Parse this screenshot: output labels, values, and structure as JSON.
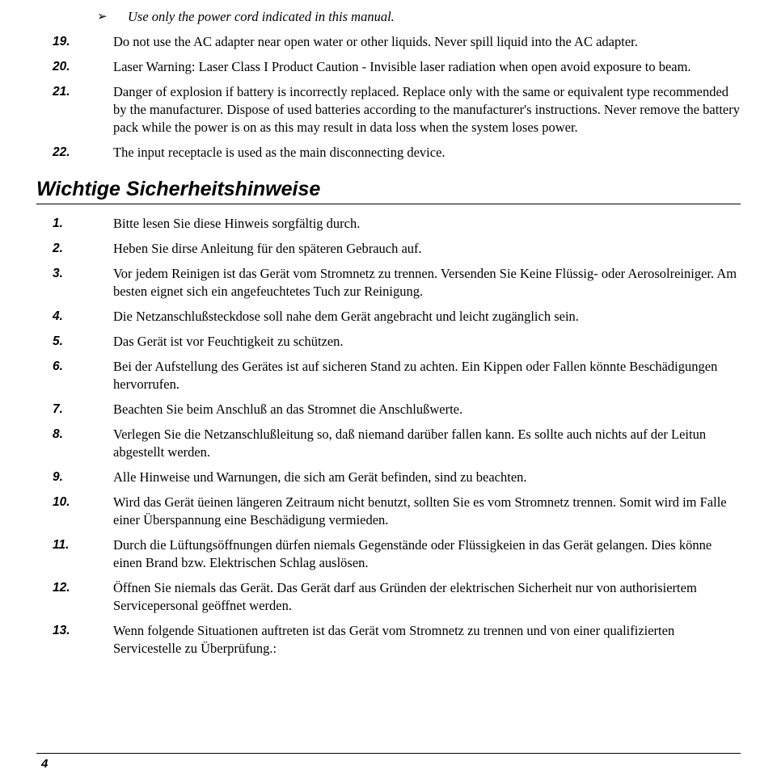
{
  "bullet": {
    "glyph": "➢",
    "text": "Use only the power cord indicated in this manual."
  },
  "english_items": [
    {
      "num": "19.",
      "text": "Do not use the AC adapter near open water or other liquids. Never spill liquid into the AC adapter."
    },
    {
      "num": "20.",
      "text": "Laser Warning: Laser Class I Product Caution - Invisible laser radiation when open avoid exposure to beam."
    },
    {
      "num": "21.",
      "text": "Danger of explosion if battery is incorrectly replaced.  Replace only with the same or equivalent type recommended by the manufacturer.  Dispose of used batteries according to the manufacturer's instructions.  Never remove the battery pack while the power is on as this may result in data loss when the system loses power."
    },
    {
      "num": "22.",
      "text": "The input receptacle is used as the main disconnecting device."
    }
  ],
  "heading": "Wichtige Sicherheitshinweise",
  "german_items": [
    {
      "num": "1.",
      "text": "Bitte lesen Sie diese Hinweis sorgfältig durch."
    },
    {
      "num": "2.",
      "text": "Heben Sie dirse Anleitung für den späteren Gebrauch auf."
    },
    {
      "num": "3.",
      "text": "Vor jedem Reinigen ist das Gerät vom Stromnetz zu trennen.  Versenden Sie Keine Flüssig- oder Aerosolreiniger.  Am besten eignet sich ein angefeuchtetes Tuch zur Reinigung."
    },
    {
      "num": "4.",
      "text": "Die Netzanschlußsteckdose soll nahe dem Gerät angebracht und leicht zugänglich sein."
    },
    {
      "num": "5.",
      "text": "Das Gerät ist vor Feuchtigkeit zu schützen."
    },
    {
      "num": "6.",
      "text": "Bei der Aufstellung des Gerätes ist auf sicheren Stand zu achten.  Ein Kippen oder Fallen könnte Beschädigungen hervorrufen."
    },
    {
      "num": "7.",
      "text": "Beachten Sie beim Anschluß an das Stromnet die Anschlußwerte."
    },
    {
      "num": "8.",
      "text": "Verlegen Sie die Netzanschlußleitung so, daß niemand darüber fallen kann.  Es sollte auch nichts auf der Leitun abgestellt werden."
    },
    {
      "num": "9.",
      "text": "Alle Hinweise und Warnungen, die sich am Gerät  befinden, sind zu beachten."
    },
    {
      "num": "10.",
      "text": "Wird das Gerät üeinen längeren Zeitraum nicht benutzt, sollten Sie es vom Stromnetz trennen. Somit wird im Falle einer Überspannung eine Beschädigung vermieden."
    },
    {
      "num": "11.",
      "text": "Durch die Lüftungsöffnungen dürfen niemals Gegenstände oder Flüssigkeien in das Gerät gelangen.  Dies könne einen Brand bzw.  Elektrischen Schlag auslösen."
    },
    {
      "num": "12.",
      "text": "Öffnen Sie niemals das Gerät.  Das Gerät darf aus Gründen der elektrischen Sicherheit nur von authorisiertem Servicepersonal  geöffnet werden."
    },
    {
      "num": "13.",
      "text": "Wenn folgende Situationen auftreten ist das Gerät vom Stromnetz zu trennen und von einer qualifizierten Servicestelle zu Überprüfung.:"
    }
  ],
  "page_number": "4"
}
